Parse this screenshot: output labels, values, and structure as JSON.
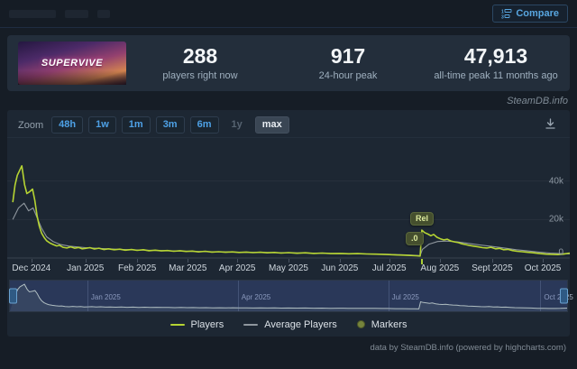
{
  "page": {
    "watermark": "SteamDB.info",
    "footer_credit": "data by SteamDB.info (powered by highcharts.com)"
  },
  "topbar": {
    "compare_label": "Compare"
  },
  "stats": {
    "game_title": "SUPERVIVE",
    "current": {
      "value": "288",
      "label": "players right now"
    },
    "peak24": {
      "value": "917",
      "label": "24-hour peak"
    },
    "alltime": {
      "value": "47,913",
      "label": "all-time peak 11 months ago"
    }
  },
  "toolbar": {
    "zoom_label": "Zoom",
    "ranges": [
      {
        "label": "48h",
        "state": "normal"
      },
      {
        "label": "1w",
        "state": "normal"
      },
      {
        "label": "1m",
        "state": "normal"
      },
      {
        "label": "3m",
        "state": "normal"
      },
      {
        "label": "6m",
        "state": "normal"
      },
      {
        "label": "1y",
        "state": "disabled"
      },
      {
        "label": "max",
        "state": "selected"
      }
    ]
  },
  "chart_data": {
    "type": "line",
    "title": "",
    "xlabel": "",
    "ylabel": "",
    "ylim": [
      0,
      60000
    ],
    "grid": true,
    "legend_position": "bottom",
    "yticks": [
      {
        "v": 0,
        "label": "0"
      },
      {
        "v": 20000,
        "label": "20k"
      },
      {
        "v": 40000,
        "label": "40k"
      }
    ],
    "xticks": [
      {
        "f": 0.043,
        "label": "Dec 2024"
      },
      {
        "f": 0.139,
        "label": "Jan 2025"
      },
      {
        "f": 0.231,
        "label": "Feb 2025"
      },
      {
        "f": 0.321,
        "label": "Mar 2025"
      },
      {
        "f": 0.409,
        "label": "Apr 2025"
      },
      {
        "f": 0.5,
        "label": "May 2025"
      },
      {
        "f": 0.591,
        "label": "Jun 2025"
      },
      {
        "f": 0.679,
        "label": "Jul 2025"
      },
      {
        "f": 0.769,
        "label": "Aug 2025"
      },
      {
        "f": 0.862,
        "label": "Sept 2025"
      },
      {
        "f": 0.952,
        "label": "Oct 2025"
      }
    ],
    "series": [
      {
        "name": "Players",
        "color": "#b6d433",
        "width": 1.6,
        "points": [
          [
            0.01,
            29000
          ],
          [
            0.014,
            38000
          ],
          [
            0.018,
            43000
          ],
          [
            0.026,
            47900
          ],
          [
            0.031,
            38000
          ],
          [
            0.035,
            33500
          ],
          [
            0.04,
            34500
          ],
          [
            0.045,
            35800
          ],
          [
            0.049,
            30000
          ],
          [
            0.053,
            22000
          ],
          [
            0.057,
            16500
          ],
          [
            0.061,
            13000
          ],
          [
            0.066,
            10500
          ],
          [
            0.07,
            9000
          ],
          [
            0.076,
            7800
          ],
          [
            0.082,
            7000
          ],
          [
            0.088,
            6300
          ],
          [
            0.093,
            6600
          ],
          [
            0.099,
            5600
          ],
          [
            0.106,
            5200
          ],
          [
            0.113,
            5800
          ],
          [
            0.12,
            5100
          ],
          [
            0.127,
            5500
          ],
          [
            0.133,
            4800
          ],
          [
            0.139,
            5000
          ],
          [
            0.147,
            5400
          ],
          [
            0.155,
            4700
          ],
          [
            0.163,
            5100
          ],
          [
            0.172,
            4400
          ],
          [
            0.18,
            4800
          ],
          [
            0.19,
            4300
          ],
          [
            0.2,
            4600
          ],
          [
            0.21,
            4100
          ],
          [
            0.221,
            4400
          ],
          [
            0.231,
            4000
          ],
          [
            0.242,
            4300
          ],
          [
            0.252,
            3800
          ],
          [
            0.263,
            4100
          ],
          [
            0.274,
            3700
          ],
          [
            0.285,
            3900
          ],
          [
            0.296,
            3500
          ],
          [
            0.307,
            3800
          ],
          [
            0.318,
            3400
          ],
          [
            0.329,
            3600
          ],
          [
            0.34,
            3200
          ],
          [
            0.352,
            3500
          ],
          [
            0.364,
            3100
          ],
          [
            0.376,
            3300
          ],
          [
            0.388,
            3000
          ],
          [
            0.4,
            3200
          ],
          [
            0.412,
            2900
          ],
          [
            0.425,
            3100
          ],
          [
            0.437,
            2800
          ],
          [
            0.45,
            3000
          ],
          [
            0.462,
            2700
          ],
          [
            0.475,
            2900
          ],
          [
            0.487,
            2600
          ],
          [
            0.5,
            2800
          ],
          [
            0.515,
            2500
          ],
          [
            0.53,
            2700
          ],
          [
            0.545,
            2400
          ],
          [
            0.56,
            2600
          ],
          [
            0.575,
            2300
          ],
          [
            0.591,
            2400
          ],
          [
            0.607,
            2200
          ],
          [
            0.623,
            2300
          ],
          [
            0.639,
            2100
          ],
          [
            0.655,
            2000
          ],
          [
            0.668,
            1900
          ],
          [
            0.679,
            1800
          ],
          [
            0.692,
            1600
          ],
          [
            0.705,
            1500
          ],
          [
            0.718,
            1300
          ],
          [
            0.727,
            1150
          ],
          [
            0.734,
            1050
          ],
          [
            0.737,
            14500
          ],
          [
            0.742,
            13200
          ],
          [
            0.748,
            12400
          ],
          [
            0.753,
            11600
          ],
          [
            0.758,
            12300
          ],
          [
            0.764,
            10800
          ],
          [
            0.77,
            10000
          ],
          [
            0.776,
            9400
          ],
          [
            0.782,
            9800
          ],
          [
            0.788,
            8900
          ],
          [
            0.795,
            8400
          ],
          [
            0.802,
            8000
          ],
          [
            0.808,
            7400
          ],
          [
            0.815,
            7000
          ],
          [
            0.822,
            6500
          ],
          [
            0.829,
            6200
          ],
          [
            0.837,
            5800
          ],
          [
            0.845,
            5400
          ],
          [
            0.853,
            5200
          ],
          [
            0.86,
            5600
          ],
          [
            0.868,
            4800
          ],
          [
            0.875,
            5000
          ],
          [
            0.882,
            4300
          ],
          [
            0.89,
            4500
          ],
          [
            0.898,
            3900
          ],
          [
            0.906,
            3500
          ],
          [
            0.915,
            3300
          ],
          [
            0.924,
            3000
          ],
          [
            0.935,
            2700
          ],
          [
            0.947,
            2300
          ],
          [
            0.958,
            2000
          ],
          [
            0.968,
            1900
          ],
          [
            0.979,
            1800
          ],
          [
            0.988,
            2000
          ],
          [
            1.0,
            2600
          ]
        ]
      },
      {
        "name": "Average Players",
        "color": "#8f979e",
        "width": 1.1,
        "points": [
          [
            0.01,
            20000
          ],
          [
            0.02,
            26000
          ],
          [
            0.03,
            28500
          ],
          [
            0.038,
            24500
          ],
          [
            0.046,
            26000
          ],
          [
            0.053,
            21000
          ],
          [
            0.061,
            15500
          ],
          [
            0.07,
            11000
          ],
          [
            0.082,
            8500
          ],
          [
            0.095,
            7000
          ],
          [
            0.11,
            6200
          ],
          [
            0.139,
            5400
          ],
          [
            0.17,
            4900
          ],
          [
            0.2,
            4500
          ],
          [
            0.231,
            4200
          ],
          [
            0.27,
            3900
          ],
          [
            0.31,
            3600
          ],
          [
            0.35,
            3350
          ],
          [
            0.4,
            3100
          ],
          [
            0.45,
            2900
          ],
          [
            0.5,
            2700
          ],
          [
            0.55,
            2500
          ],
          [
            0.591,
            2300
          ],
          [
            0.64,
            2100
          ],
          [
            0.679,
            1900
          ],
          [
            0.71,
            1600
          ],
          [
            0.734,
            1250
          ],
          [
            0.738,
            4500
          ],
          [
            0.75,
            7200
          ],
          [
            0.765,
            8600
          ],
          [
            0.78,
            8800
          ],
          [
            0.8,
            8400
          ],
          [
            0.82,
            7600
          ],
          [
            0.84,
            6800
          ],
          [
            0.862,
            6000
          ],
          [
            0.885,
            5100
          ],
          [
            0.905,
            4300
          ],
          [
            0.925,
            3700
          ],
          [
            0.945,
            3100
          ],
          [
            0.965,
            2600
          ],
          [
            0.985,
            2300
          ],
          [
            1.0,
            2100
          ]
        ]
      }
    ],
    "markers": [
      {
        "label": "Rel",
        "left": 447,
        "top": 78
      },
      {
        "label": ".0",
        "left": 442,
        "top": 100
      }
    ],
    "marker_axis_tick_f": 0.736,
    "navigator": {
      "max_value": 48000,
      "labels": [
        {
          "f": 0.139,
          "label": "Jan 2025"
        },
        {
          "f": 0.409,
          "label": "Apr 2025"
        },
        {
          "f": 0.679,
          "label": "Jul 2025"
        },
        {
          "f": 0.952,
          "label": "Oct 2025"
        }
      ]
    },
    "legend": [
      {
        "label": "Players",
        "swatch": "line",
        "color": "#b6d433"
      },
      {
        "label": "Average Players",
        "swatch": "line",
        "color": "#8f979e"
      },
      {
        "label": "Markers",
        "swatch": "circle",
        "color": "#76843c"
      }
    ]
  }
}
